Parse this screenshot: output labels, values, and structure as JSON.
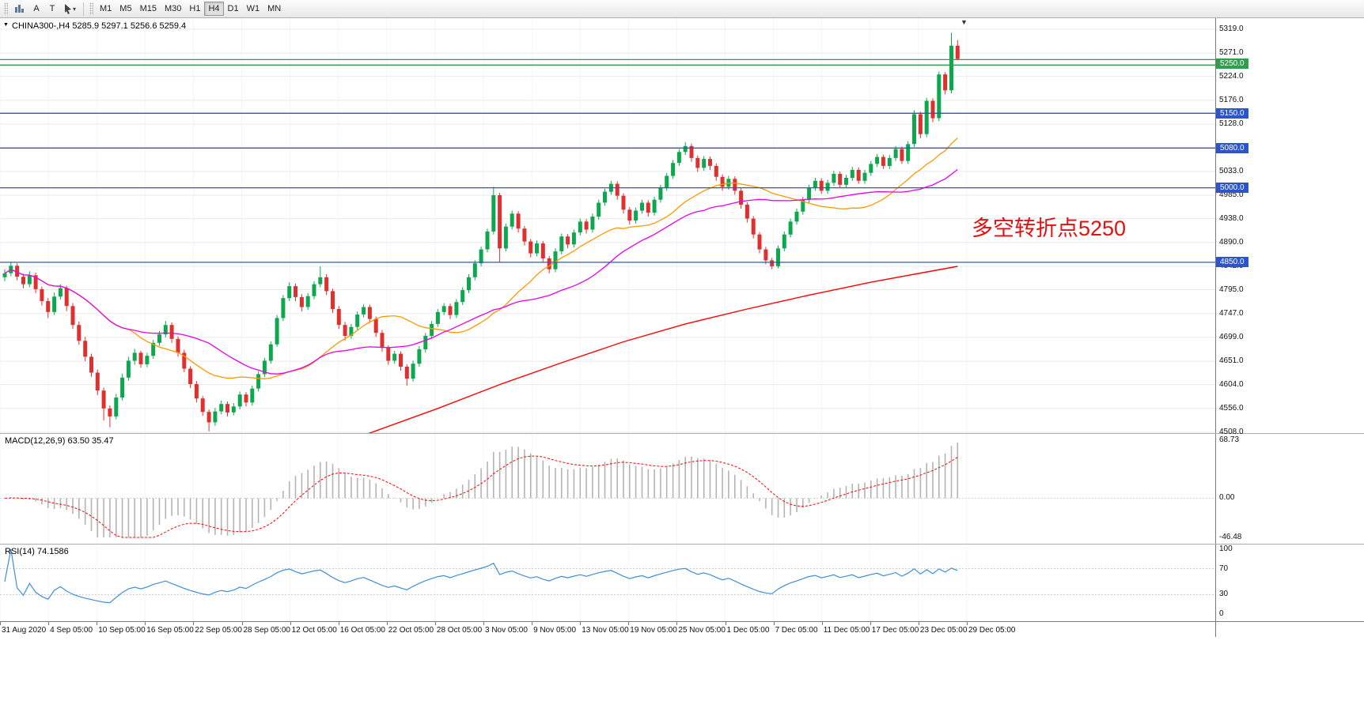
{
  "toolbar": {
    "icons": [
      {
        "name": "grid-icon"
      },
      {
        "label": "A",
        "name": "text-annotation-button"
      },
      {
        "label": "T",
        "name": "text-box-button"
      },
      {
        "name": "cursor-dropdown-button"
      }
    ],
    "timeframes": [
      {
        "label": "M1"
      },
      {
        "label": "M5"
      },
      {
        "label": "M15"
      },
      {
        "label": "M30"
      },
      {
        "label": "H1"
      },
      {
        "label": "H4",
        "active": true
      },
      {
        "label": "D1"
      },
      {
        "label": "W1"
      },
      {
        "label": "MN"
      }
    ]
  },
  "main_chart": {
    "title": "CHINA300-,H4 5285.9 5297.1 5256.6 5259.4",
    "annotation": {
      "text": "多空转折点5250",
      "color": "#e60f0f"
    }
  },
  "chart_data": {
    "type": "candlestick",
    "symbol": "CHINA300-",
    "timeframe": "H4",
    "last_bar": {
      "open": 5285.9,
      "high": 5297.1,
      "low": 5256.6,
      "close": 5259.4
    },
    "y_range": [
      4508,
      5319
    ],
    "y_tick_labels": [
      "5319.0",
      "5271.0",
      "5224.0",
      "5176.0",
      "5128.0",
      "5080.0",
      "5033.0",
      "4985.0",
      "4938.0",
      "4890.0",
      "4842.0",
      "4795.0",
      "4747.0",
      "4699.0",
      "4651.0",
      "4604.0",
      "4556.0",
      "4508.0"
    ],
    "x_tick_labels": [
      "31 Aug 2020",
      "4 Sep 05:00",
      "10 Sep 05:00",
      "16 Sep 05:00",
      "22 Sep 05:00",
      "28 Sep 05:00",
      "12 Oct 05:00",
      "16 Oct 05:00",
      "22 Oct 05:00",
      "28 Oct 05:00",
      "3 Nov 05:00",
      "9 Nov 05:00",
      "13 Nov 05:00",
      "19 Nov 05:00",
      "25 Nov 05:00",
      "1 Dec 05:00",
      "7 Dec 05:00",
      "11 Dec 05:00",
      "17 Dec 05:00",
      "23 Dec 05:00",
      "29 Dec 05:00"
    ],
    "candles": [
      [
        4820,
        4836,
        4812,
        4828
      ],
      [
        4828,
        4851,
        4822,
        4843
      ],
      [
        4843,
        4848,
        4814,
        4821
      ],
      [
        4821,
        4827,
        4798,
        4806
      ],
      [
        4806,
        4832,
        4800,
        4824
      ],
      [
        4824,
        4829,
        4788,
        4796
      ],
      [
        4796,
        4801,
        4763,
        4772
      ],
      [
        4772,
        4778,
        4738,
        4750
      ],
      [
        4750,
        4789,
        4744,
        4781
      ],
      [
        4781,
        4806,
        4775,
        4798
      ],
      [
        4798,
        4803,
        4752,
        4762
      ],
      [
        4762,
        4768,
        4716,
        4724
      ],
      [
        4724,
        4731,
        4684,
        4692
      ],
      [
        4692,
        4700,
        4651,
        4660
      ],
      [
        4660,
        4666,
        4620,
        4628
      ],
      [
        4628,
        4634,
        4583,
        4592
      ],
      [
        4592,
        4598,
        4532,
        4556
      ],
      [
        4556,
        4562,
        4518,
        4540
      ],
      [
        4540,
        4585,
        4534,
        4578
      ],
      [
        4578,
        4626,
        4572,
        4618
      ],
      [
        4618,
        4660,
        4612,
        4652
      ],
      [
        4652,
        4676,
        4644,
        4668
      ],
      [
        4668,
        4672,
        4638,
        4645
      ],
      [
        4645,
        4668,
        4639,
        4662
      ],
      [
        4662,
        4694,
        4656,
        4688
      ],
      [
        4688,
        4712,
        4682,
        4705
      ],
      [
        4705,
        4732,
        4699,
        4724
      ],
      [
        4724,
        4729,
        4688,
        4696
      ],
      [
        4696,
        4701,
        4660,
        4668
      ],
      [
        4668,
        4674,
        4629,
        4636
      ],
      [
        4636,
        4641,
        4597,
        4605
      ],
      [
        4605,
        4611,
        4568,
        4576
      ],
      [
        4576,
        4581,
        4541,
        4549
      ],
      [
        4549,
        4554,
        4510,
        4528
      ],
      [
        4528,
        4557,
        4521,
        4550
      ],
      [
        4550,
        4572,
        4544,
        4565
      ],
      [
        4565,
        4570,
        4540,
        4548
      ],
      [
        4548,
        4567,
        4542,
        4560
      ],
      [
        4560,
        4590,
        4554,
        4584
      ],
      [
        4584,
        4589,
        4560,
        4568
      ],
      [
        4568,
        4602,
        4562,
        4596
      ],
      [
        4596,
        4631,
        4590,
        4625
      ],
      [
        4625,
        4658,
        4619,
        4652
      ],
      [
        4652,
        4691,
        4646,
        4685
      ],
      [
        4685,
        4744,
        4680,
        4738
      ],
      [
        4738,
        4784,
        4732,
        4778
      ],
      [
        4778,
        4810,
        4772,
        4802
      ],
      [
        4802,
        4807,
        4772,
        4780
      ],
      [
        4780,
        4786,
        4751,
        4760
      ],
      [
        4760,
        4788,
        4754,
        4782
      ],
      [
        4782,
        4812,
        4776,
        4806
      ],
      [
        4806,
        4842,
        4800,
        4820
      ],
      [
        4820,
        4826,
        4784,
        4792
      ],
      [
        4792,
        4797,
        4748,
        4756
      ],
      [
        4756,
        4762,
        4716,
        4724
      ],
      [
        4724,
        4730,
        4693,
        4702
      ],
      [
        4702,
        4726,
        4696,
        4720
      ],
      [
        4720,
        4751,
        4714,
        4745
      ],
      [
        4745,
        4766,
        4739,
        4760
      ],
      [
        4760,
        4765,
        4728,
        4736
      ],
      [
        4736,
        4741,
        4700,
        4708
      ],
      [
        4708,
        4714,
        4670,
        4678
      ],
      [
        4678,
        4683,
        4644,
        4652
      ],
      [
        4652,
        4672,
        4646,
        4666
      ],
      [
        4666,
        4671,
        4632,
        4640
      ],
      [
        4640,
        4645,
        4602,
        4616
      ],
      [
        4616,
        4652,
        4610,
        4646
      ],
      [
        4646,
        4681,
        4640,
        4675
      ],
      [
        4675,
        4708,
        4669,
        4702
      ],
      [
        4702,
        4732,
        4696,
        4726
      ],
      [
        4726,
        4756,
        4720,
        4750
      ],
      [
        4750,
        4768,
        4744,
        4762
      ],
      [
        4762,
        4767,
        4736,
        4744
      ],
      [
        4744,
        4776,
        4738,
        4770
      ],
      [
        4770,
        4800,
        4764,
        4794
      ],
      [
        4794,
        4826,
        4788,
        4820
      ],
      [
        4820,
        4854,
        4814,
        4848
      ],
      [
        4848,
        4882,
        4842,
        4876
      ],
      [
        4876,
        4918,
        4870,
        4912
      ],
      [
        4912,
        5002,
        4906,
        4985
      ],
      [
        4985,
        4990,
        4850,
        4878
      ],
      [
        4878,
        4928,
        4872,
        4922
      ],
      [
        4922,
        4954,
        4916,
        4948
      ],
      [
        4948,
        4953,
        4910,
        4918
      ],
      [
        4918,
        4923,
        4884,
        4892
      ],
      [
        4892,
        4897,
        4860,
        4868
      ],
      [
        4868,
        4894,
        4862,
        4888
      ],
      [
        4888,
        4893,
        4850,
        4858
      ],
      [
        4858,
        4863,
        4828,
        4836
      ],
      [
        4836,
        4878,
        4830,
        4872
      ],
      [
        4872,
        4908,
        4866,
        4902
      ],
      [
        4902,
        4907,
        4878,
        4886
      ],
      [
        4886,
        4916,
        4880,
        4910
      ],
      [
        4910,
        4938,
        4904,
        4932
      ],
      [
        4932,
        4937,
        4908,
        4916
      ],
      [
        4916,
        4948,
        4910,
        4942
      ],
      [
        4942,
        4976,
        4936,
        4970
      ],
      [
        4970,
        4998,
        4964,
        4992
      ],
      [
        4992,
        5014,
        4986,
        5008
      ],
      [
        5008,
        5013,
        4976,
        4984
      ],
      [
        4984,
        4989,
        4948,
        4956
      ],
      [
        4956,
        4961,
        4926,
        4934
      ],
      [
        4934,
        4960,
        4928,
        4954
      ],
      [
        4954,
        4976,
        4948,
        4970
      ],
      [
        4970,
        4975,
        4942,
        4950
      ],
      [
        4950,
        4982,
        4944,
        4976
      ],
      [
        4976,
        5006,
        4970,
        5000
      ],
      [
        5000,
        5030,
        4994,
        5024
      ],
      [
        5024,
        5056,
        5018,
        5050
      ],
      [
        5050,
        5078,
        5044,
        5072
      ],
      [
        5072,
        5092,
        5066,
        5084
      ],
      [
        5084,
        5089,
        5052,
        5060
      ],
      [
        5060,
        5065,
        5032,
        5040
      ],
      [
        5040,
        5064,
        5034,
        5058
      ],
      [
        5058,
        5063,
        5036,
        5044
      ],
      [
        5044,
        5049,
        5014,
        5022
      ],
      [
        5022,
        5027,
        4994,
        5002
      ],
      [
        5002,
        5024,
        4996,
        5018
      ],
      [
        5018,
        5023,
        4986,
        4994
      ],
      [
        4994,
        4999,
        4958,
        4966
      ],
      [
        4966,
        4971,
        4930,
        4938
      ],
      [
        4938,
        4943,
        4898,
        4906
      ],
      [
        4906,
        4911,
        4868,
        4876
      ],
      [
        4876,
        4881,
        4846,
        4854
      ],
      [
        4854,
        4859,
        4836,
        4842
      ],
      [
        4842,
        4884,
        4838,
        4878
      ],
      [
        4878,
        4912,
        4872,
        4906
      ],
      [
        4906,
        4938,
        4900,
        4932
      ],
      [
        4932,
        4958,
        4926,
        4952
      ],
      [
        4952,
        4982,
        4946,
        4976
      ],
      [
        4976,
        5006,
        4970,
        5000
      ],
      [
        5000,
        5020,
        4994,
        5014
      ],
      [
        5014,
        5019,
        4988,
        4994
      ],
      [
        4994,
        5016,
        4988,
        5010
      ],
      [
        5010,
        5034,
        5004,
        5028
      ],
      [
        5028,
        5033,
        5000,
        5006
      ],
      [
        5006,
        5026,
        5000,
        5020
      ],
      [
        5020,
        5042,
        5014,
        5036
      ],
      [
        5036,
        5041,
        5008,
        5014
      ],
      [
        5014,
        5036,
        5008,
        5030
      ],
      [
        5030,
        5054,
        5024,
        5048
      ],
      [
        5048,
        5068,
        5042,
        5062
      ],
      [
        5062,
        5067,
        5038,
        5044
      ],
      [
        5044,
        5066,
        5038,
        5060
      ],
      [
        5060,
        5084,
        5054,
        5078
      ],
      [
        5078,
        5083,
        5048,
        5054
      ],
      [
        5054,
        5094,
        5048,
        5088
      ],
      [
        5088,
        5156,
        5082,
        5148
      ],
      [
        5148,
        5153,
        5100,
        5108
      ],
      [
        5108,
        5181,
        5102,
        5175
      ],
      [
        5175,
        5180,
        5132,
        5140
      ],
      [
        5140,
        5234,
        5134,
        5228
      ],
      [
        5228,
        5233,
        5188,
        5196
      ],
      [
        5196,
        5312,
        5190,
        5285.9
      ],
      [
        5285.9,
        5297.1,
        5256.6,
        5259.4
      ]
    ],
    "overlays": {
      "sma_fast": {
        "period": 21,
        "color": "#ff9800"
      },
      "sma_mid": {
        "period": 34,
        "color": "#e800e8"
      },
      "trend_ma": {
        "color": "#ff0000",
        "points": [
          [
            58,
            4502
          ],
          [
            70,
            4556
          ],
          [
            80,
            4604
          ],
          [
            90,
            4648
          ],
          [
            100,
            4690
          ],
          [
            110,
            4726
          ],
          [
            120,
            4756
          ],
          [
            130,
            4784
          ],
          [
            140,
            4810
          ],
          [
            147,
            4826
          ],
          [
            154,
            4842
          ]
        ]
      }
    },
    "hlines": {
      "green": {
        "color": "#2f9e4f",
        "prices": [
          5258,
          5247
        ],
        "tag": {
          "price": 5250,
          "label": "5250.0"
        }
      },
      "blue": {
        "color": "#2b55c8",
        "prices": [
          5150,
          5080,
          5000,
          4850
        ],
        "tags": [
          {
            "price": 5150,
            "label": "5150.0"
          },
          {
            "price": 5080,
            "label": "5080.0"
          },
          {
            "price": 5000,
            "label": "5000.0"
          },
          {
            "price": 4850,
            "label": "4850.0"
          }
        ]
      }
    },
    "indicators": {
      "macd": {
        "header": "MACD(12,26,9) 63.50 35.47",
        "fast": 12,
        "slow": 26,
        "signal": 9,
        "range": [
          -46.48,
          68.73
        ],
        "y_tick_labels": [
          "68.73",
          "0.00",
          "-46.48"
        ]
      },
      "rsi": {
        "header": "RSI(14) 74.1586",
        "period": 14,
        "levels": [
          70,
          30
        ],
        "range": [
          0,
          100
        ],
        "y_tick_labels": [
          "100",
          "70",
          "30",
          "0"
        ]
      }
    },
    "colors": {
      "up": "#0da84e",
      "down": "#e02f2f",
      "grid": "#eaeaea",
      "vgrid": "#f5f5f5",
      "macd_hist": "#b4b4b4",
      "macd_signal": "#ff0000",
      "macd_zero": "#d0d0d0",
      "rsi_line": "#3f8fd6",
      "rsi_level": "#c8c8c8"
    }
  }
}
